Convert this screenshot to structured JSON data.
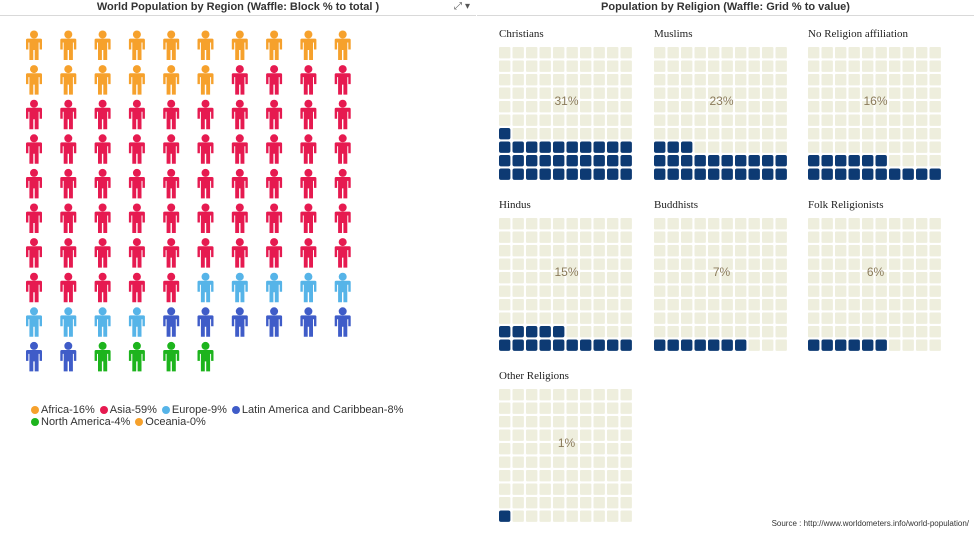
{
  "left_title": "World Population by Region (Waffle: Block % to total )",
  "right_title": "Population by Religion (Waffle: Grid % to value)",
  "header_icons": [
    "expand-icon",
    "dropdown-icon"
  ],
  "source": "Source : http://www.worldometers.info/world-population/",
  "colors": {
    "filled": "#0d3a73",
    "empty": "#eeeedd",
    "pct_text": "#8a7a5a"
  },
  "chart_data": [
    {
      "type": "waffle",
      "title": "World Population by Region (Waffle: Block % to total )",
      "unit_icon": "person-icon",
      "series": [
        {
          "name": "Africa-16%",
          "value": 16,
          "color": "#f6a12c"
        },
        {
          "name": "Asia-59%",
          "value": 59,
          "color": "#e61a50"
        },
        {
          "name": "Europe-9%",
          "value": 9,
          "color": "#56b4e8"
        },
        {
          "name": "Latin America and Caribbean-8%",
          "value": 8,
          "color": "#3f5cc8"
        },
        {
          "name": "North America-4%",
          "value": 4,
          "color": "#1db41d"
        },
        {
          "name": "Oceania-0%",
          "value": 0,
          "color": "#f6a12c"
        }
      ]
    },
    {
      "type": "waffle",
      "title": "Population by Religion (Waffle: Grid % to value)",
      "series": [
        {
          "name": "Christians",
          "value": 31,
          "label": "31%"
        },
        {
          "name": "Muslims",
          "value": 23,
          "label": "23%"
        },
        {
          "name": "No Religion affiliation",
          "value": 16,
          "label": "16%"
        },
        {
          "name": "Hindus",
          "value": 15,
          "label": "15%"
        },
        {
          "name": "Buddhists",
          "value": 7,
          "label": "7%"
        },
        {
          "name": "Folk Religionists",
          "value": 6,
          "label": "6%"
        },
        {
          "name": "Other Religions",
          "value": 1,
          "label": "1%"
        }
      ]
    }
  ]
}
